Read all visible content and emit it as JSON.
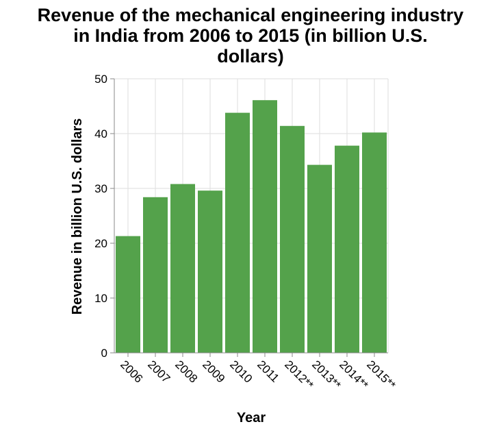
{
  "chart_data": {
    "type": "bar",
    "title_lines": [
      "Revenue of the mechanical engineering industry",
      "in India from 2006 to 2015 (in billion U.S.",
      "dollars)"
    ],
    "xlabel": "Year",
    "ylabel": "Revenue in billion U.S. dollars",
    "categories": [
      "2006",
      "2007",
      "2008",
      "2009",
      "2010",
      "2011",
      "2012**",
      "2013**",
      "2014**",
      "2015**"
    ],
    "values": [
      21.3,
      28.4,
      30.8,
      29.6,
      43.8,
      46.1,
      41.4,
      34.3,
      37.8,
      40.2
    ],
    "ylim": [
      0,
      50
    ],
    "yticks": [
      "0",
      "10",
      "20",
      "30",
      "40",
      "50"
    ],
    "bar_color": "#54a24b",
    "grid": true
  }
}
